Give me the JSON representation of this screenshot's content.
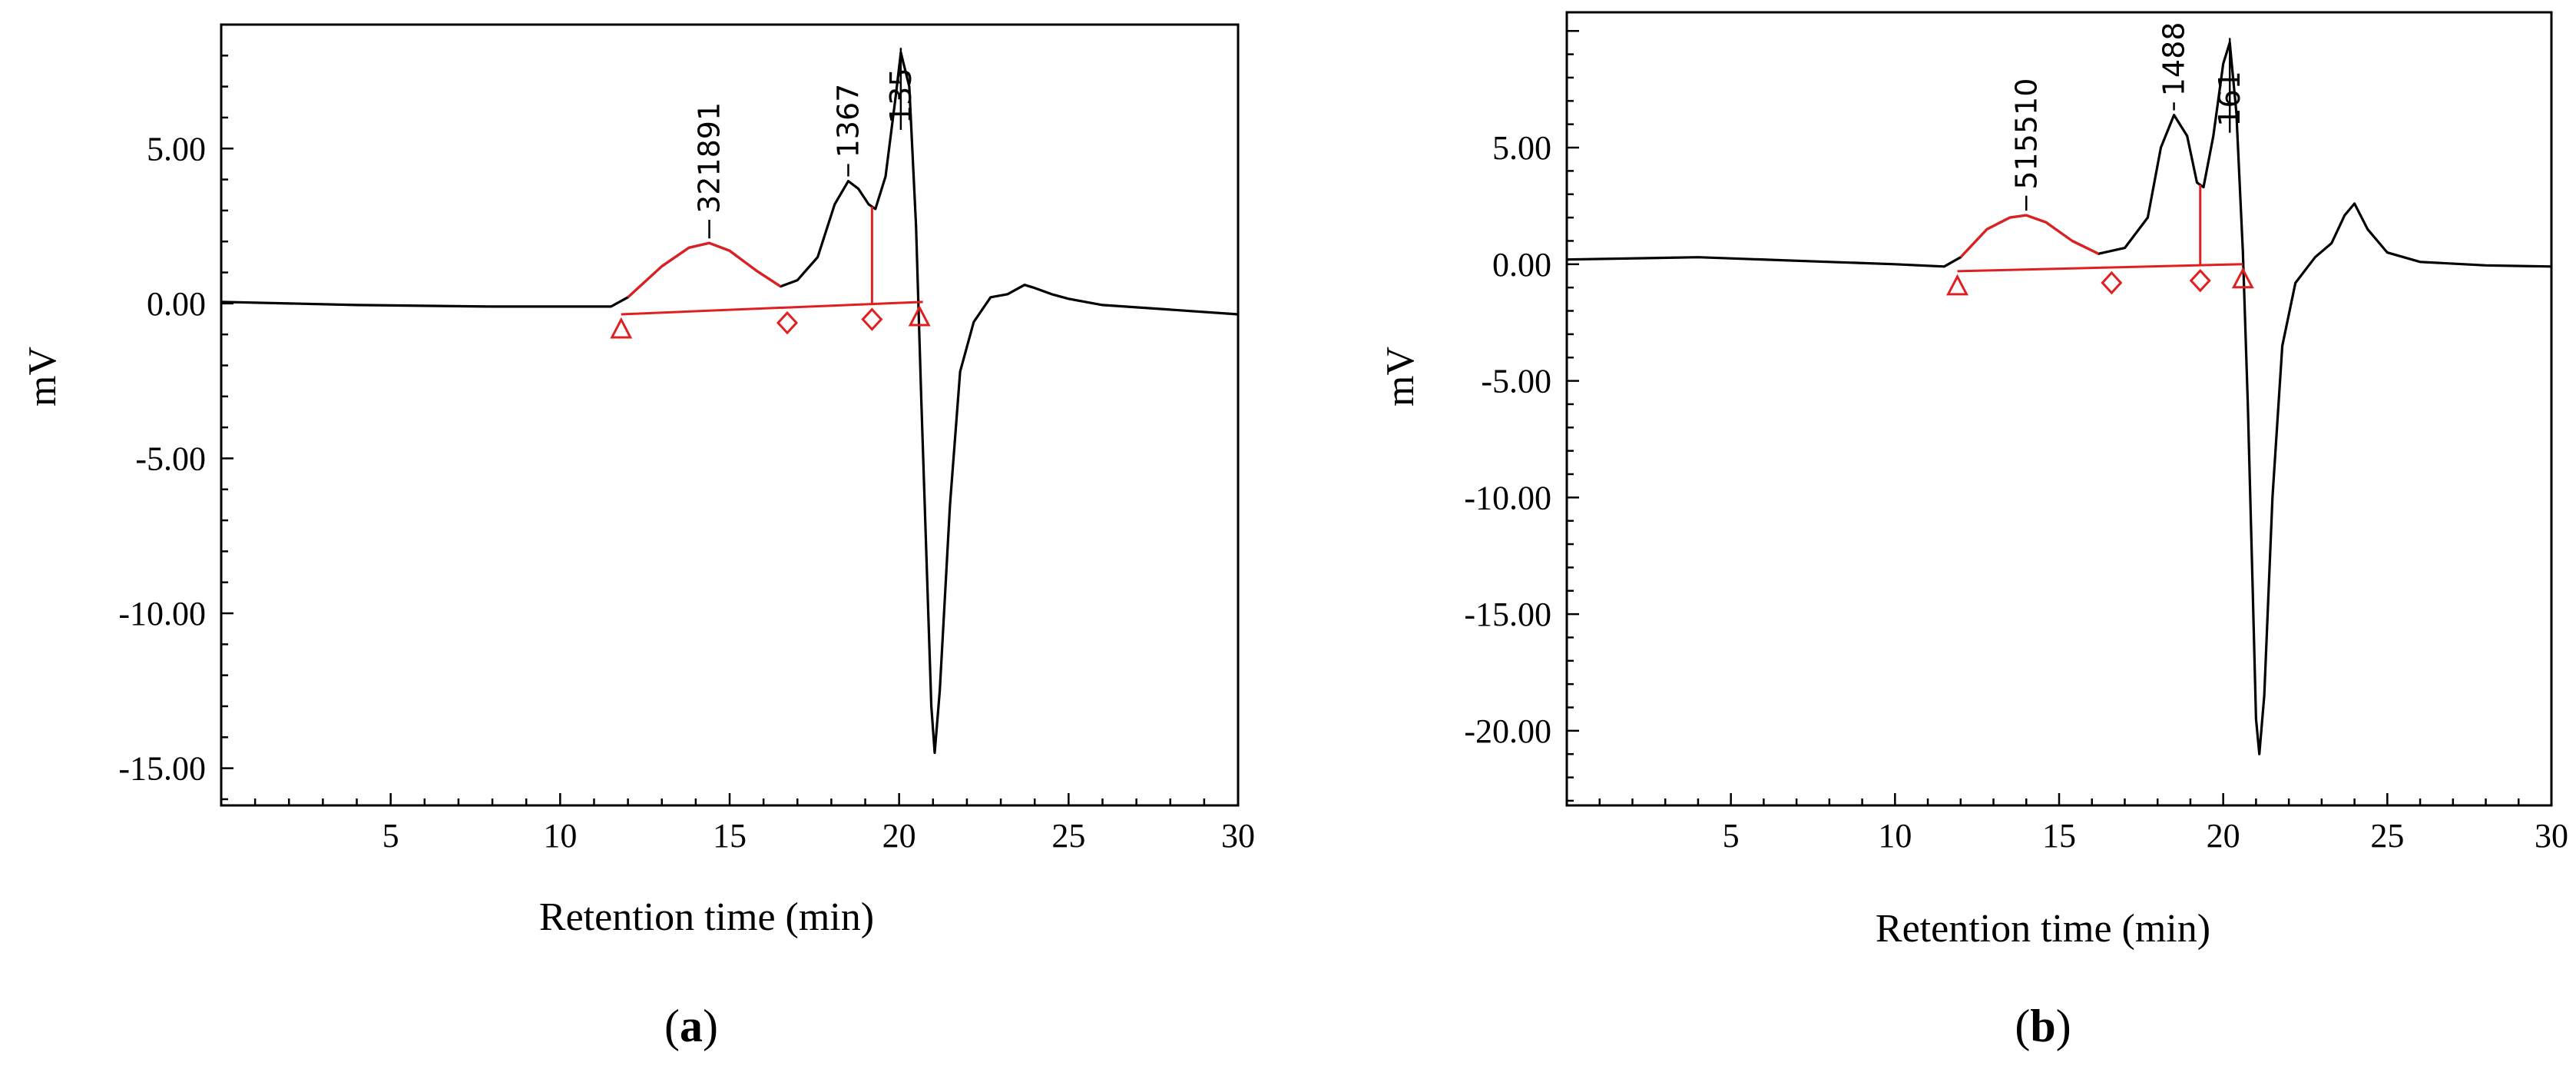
{
  "chart_data": [
    {
      "type": "line",
      "panel_label": "a",
      "xlabel": "Retention time (min)",
      "ylabel": "mV",
      "xlim": [
        0,
        30
      ],
      "ylim": [
        -16.2,
        9
      ],
      "x_ticks": [
        5,
        10,
        15,
        20,
        25,
        30
      ],
      "y_ticks": [
        5,
        0,
        -5,
        -10,
        -15
      ],
      "y_tick_labels": [
        "5.00",
        "0.00",
        "-5.00",
        "-10.00",
        "-15.00"
      ],
      "grid": false,
      "colors": {
        "trace": "#000000",
        "integration": "#e02020"
      },
      "series": [
        {
          "x": [
            0,
            4,
            8,
            10,
            11.5,
            12,
            13,
            13.8,
            14.4,
            15,
            15.8,
            16.5,
            17,
            17.6,
            18.1,
            18.5,
            18.8,
            19.1,
            19.3,
            19.6,
            19.9,
            20.05,
            20.3,
            20.5,
            20.65,
            20.8,
            20.95,
            21.05,
            21.2,
            21.5,
            21.8,
            22.2,
            22.7,
            23.2,
            23.7,
            24.0,
            24.5,
            25,
            26,
            28,
            30
          ],
          "y": [
            0.05,
            -0.05,
            -0.1,
            -0.1,
            -0.1,
            0.2,
            1.2,
            1.8,
            1.95,
            1.7,
            1.05,
            0.55,
            0.75,
            1.5,
            3.2,
            3.95,
            3.7,
            3.2,
            3.05,
            4.1,
            6.7,
            8.1,
            7.0,
            2.5,
            -3.0,
            -8.0,
            -13.0,
            -14.5,
            -12.5,
            -6.5,
            -2.2,
            -0.6,
            0.2,
            0.3,
            0.6,
            0.5,
            0.3,
            0.15,
            -0.05,
            -0.2,
            -0.35
          ]
        }
      ],
      "peaks": [
        {
          "label": "321891",
          "x": 14.4,
          "y": 1.95,
          "label_y": 2.9
        },
        {
          "label": "1367",
          "x": 18.5,
          "y": 3.95,
          "label_y": 4.7
        },
        {
          "label": "135",
          "x": 20.05,
          "y": 8.1,
          "label_y": 5.8
        }
      ],
      "baseline": {
        "x_start": 11.8,
        "y_start": -0.35,
        "x_end": 20.7,
        "y_end": 0.05
      },
      "drop_lines": [
        19.2
      ],
      "markers": [
        {
          "shape": "triangle",
          "x": 11.8
        },
        {
          "shape": "diamond",
          "x": 16.7
        },
        {
          "shape": "diamond",
          "x": 19.2
        },
        {
          "shape": "triangle",
          "x": 20.6
        }
      ]
    },
    {
      "type": "line",
      "panel_label": "b",
      "xlabel": "Retention time (min)",
      "ylabel": "mV",
      "xlim": [
        0,
        30
      ],
      "ylim": [
        -23.2,
        10.8
      ],
      "x_ticks": [
        5,
        10,
        15,
        20,
        25,
        30
      ],
      "y_ticks": [
        5,
        0,
        -5,
        -10,
        -15,
        -20
      ],
      "y_tick_labels": [
        "5.00",
        "0.00",
        "-5.00",
        "-10.00",
        "-15.00",
        "-20.00"
      ],
      "grid": false,
      "colors": {
        "trace": "#000000",
        "integration": "#e02020"
      },
      "series": [
        {
          "x": [
            0,
            4,
            8,
            10,
            11.5,
            12,
            12.8,
            13.5,
            14.0,
            14.6,
            15.4,
            16.2,
            17,
            17.7,
            18.1,
            18.5,
            18.9,
            19.2,
            19.4,
            19.7,
            20.0,
            20.2,
            20.4,
            20.6,
            20.75,
            20.9,
            21.0,
            21.1,
            21.25,
            21.5,
            21.8,
            22.2,
            22.8,
            23.3,
            23.7,
            24.0,
            24.4,
            25,
            26,
            28,
            30
          ],
          "y": [
            0.2,
            0.3,
            0.1,
            0.0,
            -0.1,
            0.3,
            1.5,
            2.0,
            2.1,
            1.8,
            1.0,
            0.45,
            0.7,
            2.0,
            5.0,
            6.4,
            5.5,
            3.5,
            3.3,
            5.5,
            8.6,
            9.5,
            6.5,
            0.5,
            -6.0,
            -14.0,
            -19.5,
            -21.0,
            -18.5,
            -10.0,
            -3.5,
            -0.8,
            0.3,
            0.9,
            2.1,
            2.6,
            1.5,
            0.5,
            0.1,
            -0.05,
            -0.1
          ]
        }
      ],
      "peaks": [
        {
          "label": "515510",
          "x": 14.0,
          "y": 2.1,
          "label_y": 3.2
        },
        {
          "label": "1488",
          "x": 18.5,
          "y": 6.4,
          "label_y": 7.2
        },
        {
          "label": "161",
          "x": 20.2,
          "y": 9.5,
          "label_y": 5.9
        }
      ],
      "baseline": {
        "x_start": 11.9,
        "y_start": -0.3,
        "x_end": 20.6,
        "y_end": 0.0
      },
      "drop_lines": [
        19.3
      ],
      "markers": [
        {
          "shape": "triangle",
          "x": 11.9
        },
        {
          "shape": "diamond",
          "x": 16.6
        },
        {
          "shape": "diamond",
          "x": 19.3
        },
        {
          "shape": "triangle",
          "x": 20.6
        }
      ]
    }
  ]
}
